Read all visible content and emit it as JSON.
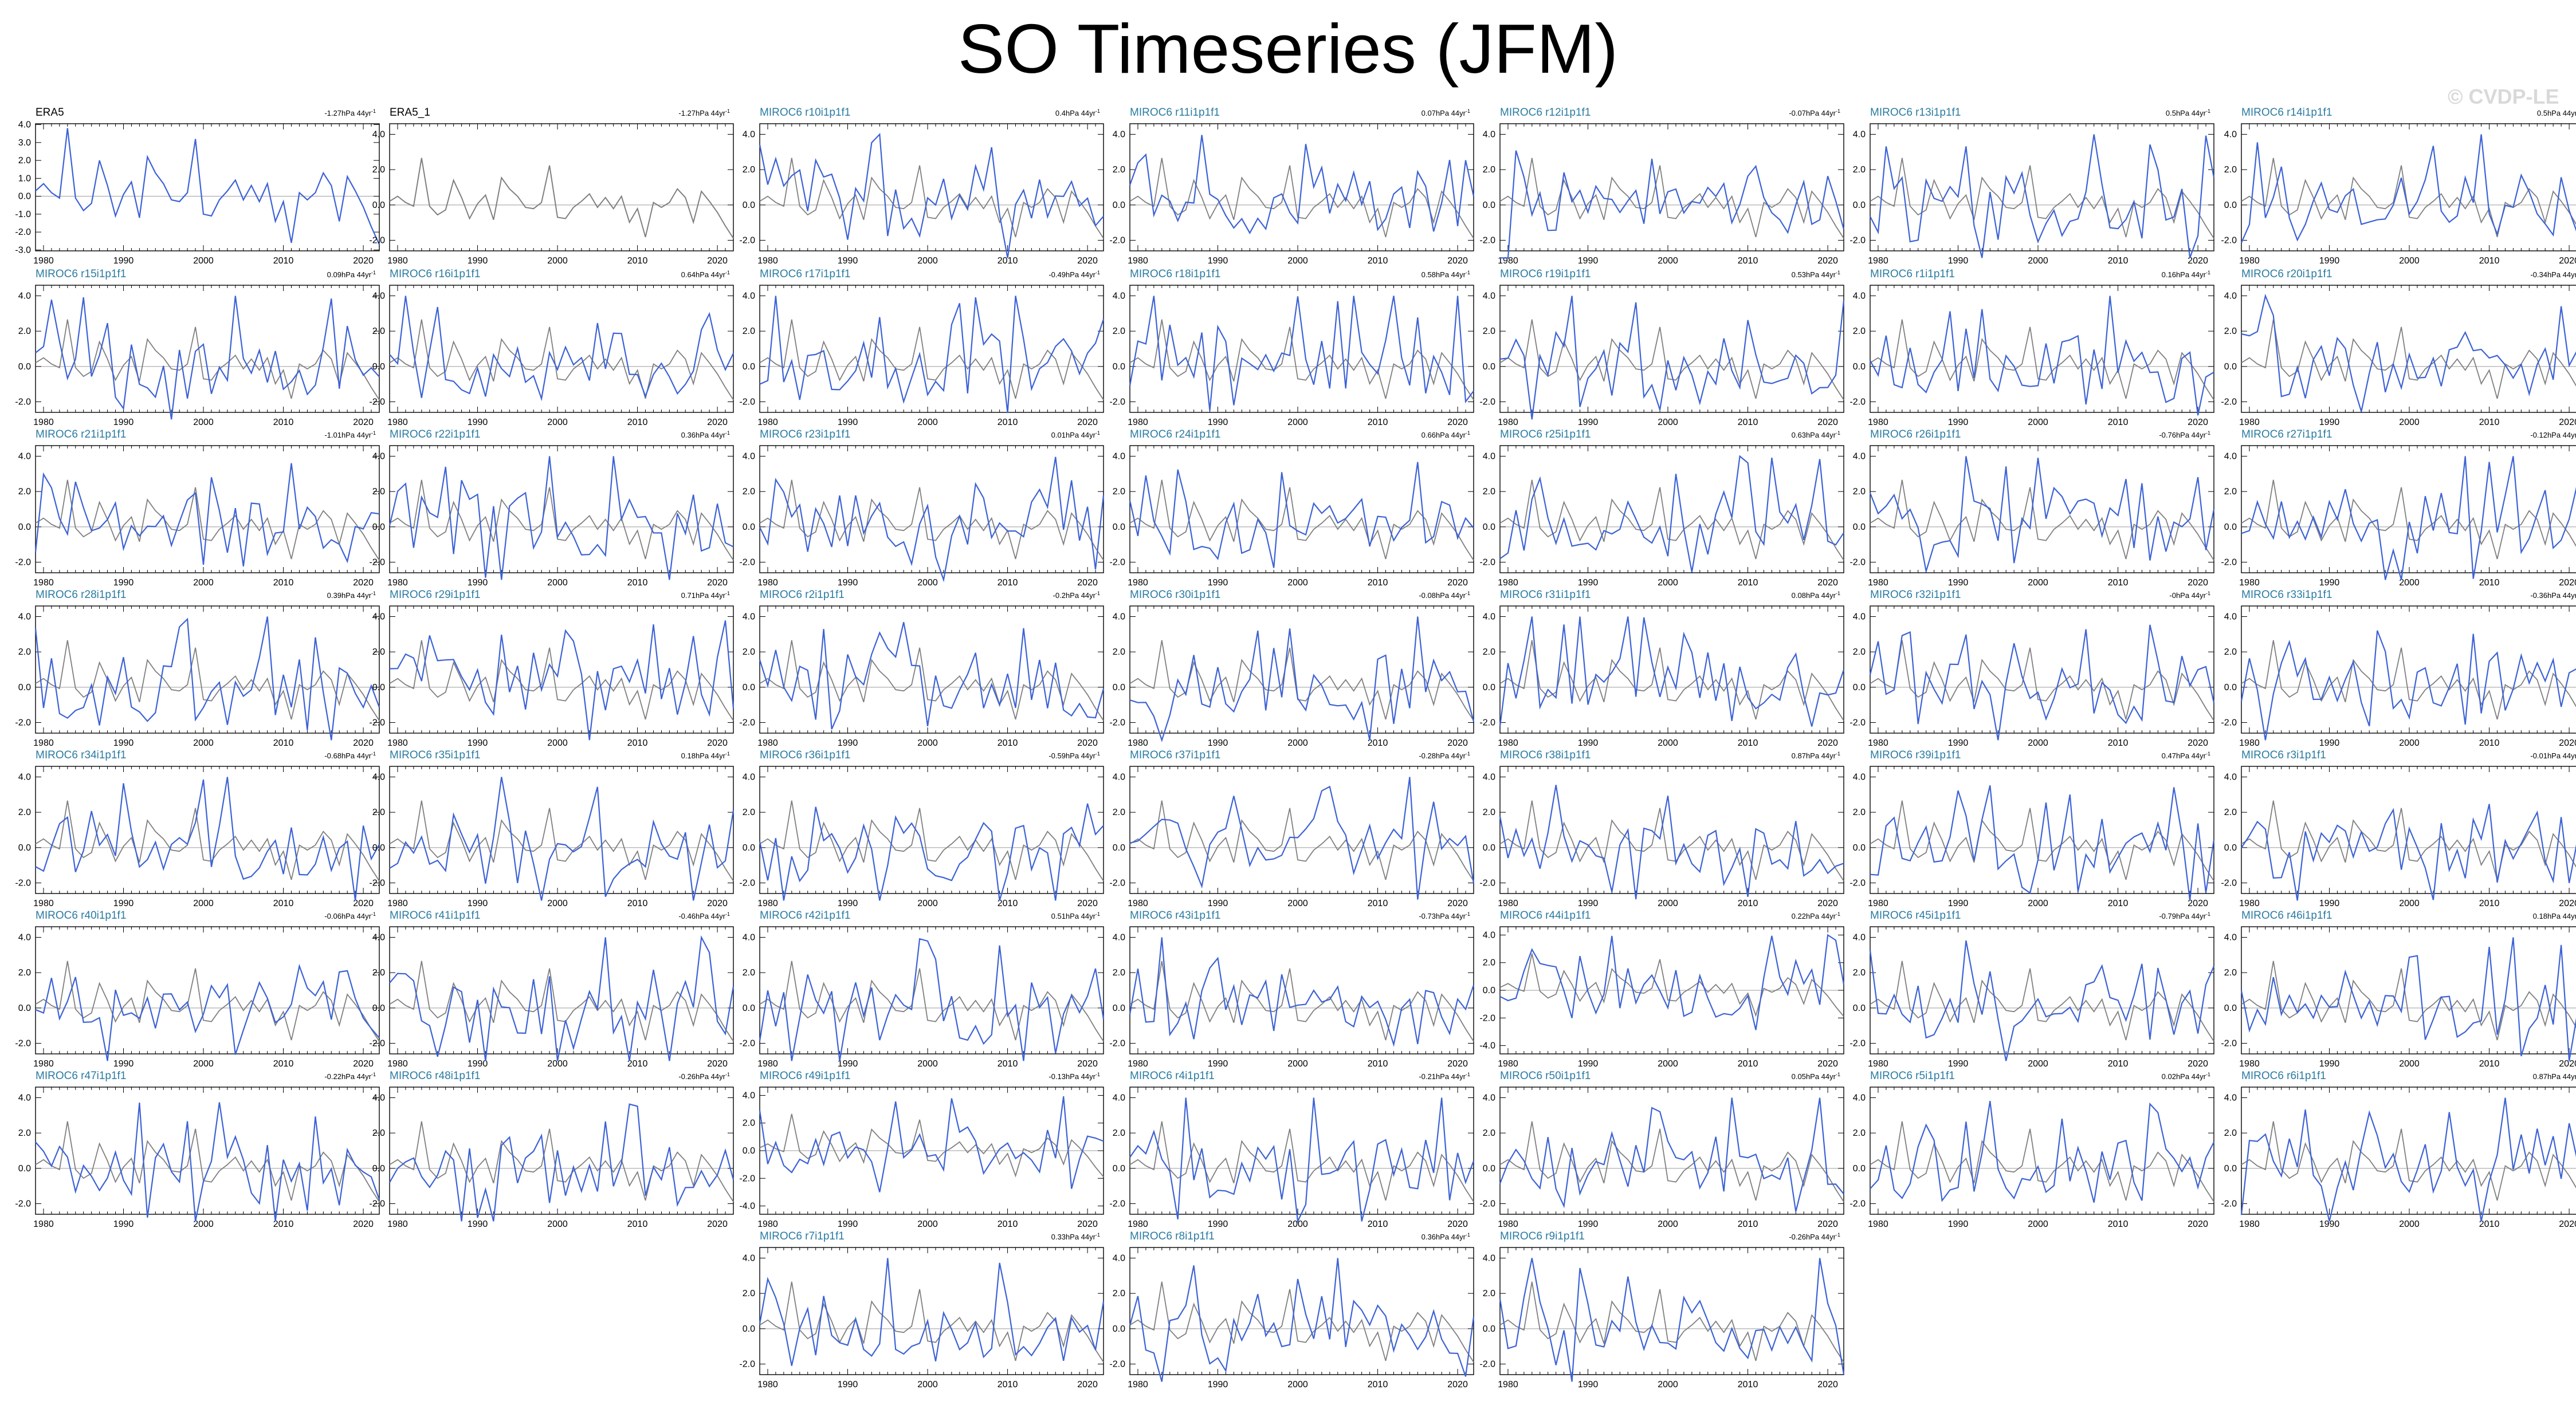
{
  "title": "SO Timeseries (JFM)",
  "watermark": "© CVDP-LE",
  "colors": {
    "model": "#3c62d6",
    "obs": "#7f7f7f",
    "title_obs": "#000000",
    "title_model": "#2a7ba2"
  },
  "chart_data": {
    "type": "line",
    "x_range": [
      1979,
      2022
    ],
    "x_ticks": [
      "1980",
      "1990",
      "2000",
      "2010",
      "2020"
    ],
    "y_ticks_default": [
      "-2.0",
      "0.0",
      "2.0",
      "4.0"
    ],
    "panels": [
      {
        "name": "ERA5",
        "trend": "-1.27hPa 44yr",
        "y_ticks": [
          "-3.0",
          "-2.0",
          "-1.0",
          "0.0",
          "1.0",
          "2.0",
          "3.0",
          "4.0"
        ]
      },
      {
        "name": "ERA5_1",
        "trend": "-1.27hPa 44yr",
        "y_ticks": [
          "-2.0",
          "0.0",
          "2.0",
          "4.0"
        ]
      },
      {
        "name": "MIROC6 r10i1p1f1",
        "trend": "0.4hPa 44yr"
      },
      {
        "name": "MIROC6 r11i1p1f1",
        "trend": "0.07hPa 44yr"
      },
      {
        "name": "MIROC6 r12i1p1f1",
        "trend": "-0.07hPa 44yr"
      },
      {
        "name": "MIROC6 r13i1p1f1",
        "trend": "0.5hPa 44yr"
      },
      {
        "name": "MIROC6 r14i1p1f1",
        "trend": "0.5hPa 44yr"
      },
      {
        "name": "MIROC6 r15i1p1f1",
        "trend": "0.09hPa 44yr"
      },
      {
        "name": "MIROC6 r16i1p1f1",
        "trend": "0.64hPa 44yr"
      },
      {
        "name": "MIROC6 r17i1p1f1",
        "trend": "-0.49hPa 44yr"
      },
      {
        "name": "MIROC6 r18i1p1f1",
        "trend": "0.58hPa 44yr"
      },
      {
        "name": "MIROC6 r19i1p1f1",
        "trend": "0.53hPa 44yr"
      },
      {
        "name": "MIROC6 r1i1p1f1",
        "trend": "0.16hPa 44yr"
      },
      {
        "name": "MIROC6 r20i1p1f1",
        "trend": "-0.34hPa 44yr"
      },
      {
        "name": "MIROC6 r21i1p1f1",
        "trend": "-1.01hPa 44yr"
      },
      {
        "name": "MIROC6 r22i1p1f1",
        "trend": "0.36hPa 44yr"
      },
      {
        "name": "MIROC6 r23i1p1f1",
        "trend": "0.01hPa 44yr"
      },
      {
        "name": "MIROC6 r24i1p1f1",
        "trend": "0.66hPa 44yr"
      },
      {
        "name": "MIROC6 r25i1p1f1",
        "trend": "0.63hPa 44yr"
      },
      {
        "name": "MIROC6 r26i1p1f1",
        "trend": "-0.76hPa 44yr"
      },
      {
        "name": "MIROC6 r27i1p1f1",
        "trend": "-0.12hPa 44yr"
      },
      {
        "name": "MIROC6 r28i1p1f1",
        "trend": "0.39hPa 44yr"
      },
      {
        "name": "MIROC6 r29i1p1f1",
        "trend": "0.71hPa 44yr"
      },
      {
        "name": "MIROC6 r2i1p1f1",
        "trend": "-0.2hPa 44yr"
      },
      {
        "name": "MIROC6 r30i1p1f1",
        "trend": "-0.08hPa 44yr"
      },
      {
        "name": "MIROC6 r31i1p1f1",
        "trend": "0.08hPa 44yr"
      },
      {
        "name": "MIROC6 r32i1p1f1",
        "trend": "-0hPa 44yr"
      },
      {
        "name": "MIROC6 r33i1p1f1",
        "trend": "-0.36hPa 44yr"
      },
      {
        "name": "MIROC6 r34i1p1f1",
        "trend": "-0.68hPa 44yr"
      },
      {
        "name": "MIROC6 r35i1p1f1",
        "trend": "0.18hPa 44yr"
      },
      {
        "name": "MIROC6 r36i1p1f1",
        "trend": "-0.59hPa 44yr"
      },
      {
        "name": "MIROC6 r37i1p1f1",
        "trend": "-0.28hPa 44yr"
      },
      {
        "name": "MIROC6 r38i1p1f1",
        "trend": "0.87hPa 44yr"
      },
      {
        "name": "MIROC6 r39i1p1f1",
        "trend": "0.47hPa 44yr"
      },
      {
        "name": "MIROC6 r3i1p1f1",
        "trend": "-0.01hPa 44yr"
      },
      {
        "name": "MIROC6 r40i1p1f1",
        "trend": "-0.06hPa 44yr"
      },
      {
        "name": "MIROC6 r41i1p1f1",
        "trend": "-0.46hPa 44yr"
      },
      {
        "name": "MIROC6 r42i1p1f1",
        "trend": "0.51hPa 44yr"
      },
      {
        "name": "MIROC6 r43i1p1f1",
        "trend": "-0.73hPa 44yr"
      },
      {
        "name": "MIROC6 r44i1p1f1",
        "trend": "0.22hPa 44yr",
        "y_ticks": [
          "-4.0",
          "-2.0",
          "0.0",
          "2.0",
          "4.0"
        ]
      },
      {
        "name": "MIROC6 r45i1p1f1",
        "trend": "-0.79hPa 44yr"
      },
      {
        "name": "MIROC6 r46i1p1f1",
        "trend": "0.18hPa 44yr"
      },
      {
        "name": "MIROC6 r47i1p1f1",
        "trend": "-0.22hPa 44yr"
      },
      {
        "name": "MIROC6 r48i1p1f1",
        "trend": "-0.26hPa 44yr"
      },
      {
        "name": "MIROC6 r49i1p1f1",
        "trend": "-0.13hPa 44yr",
        "y_ticks": [
          "-4.0",
          "-2.0",
          "0.0",
          "2.0",
          "4.0"
        ]
      },
      {
        "name": "MIROC6 r4i1p1f1",
        "trend": "-0.21hPa 44yr"
      },
      {
        "name": "MIROC6 r50i1p1f1",
        "trend": "0.05hPa 44yr"
      },
      {
        "name": "MIROC6 r5i1p1f1",
        "trend": "0.02hPa 44yr"
      },
      {
        "name": "MIROC6 r6i1p1f1",
        "trend": "0.87hPa 44yr"
      },
      {
        "name": "MIROC6 r7i1p1f1",
        "trend": "0.33hPa 44yr"
      },
      {
        "name": "MIROC6 r8i1p1f1",
        "trend": "0.36hPa 44yr"
      },
      {
        "name": "MIROC6 r9i1p1f1",
        "trend": "-0.26hPa 44yr"
      }
    ]
  }
}
